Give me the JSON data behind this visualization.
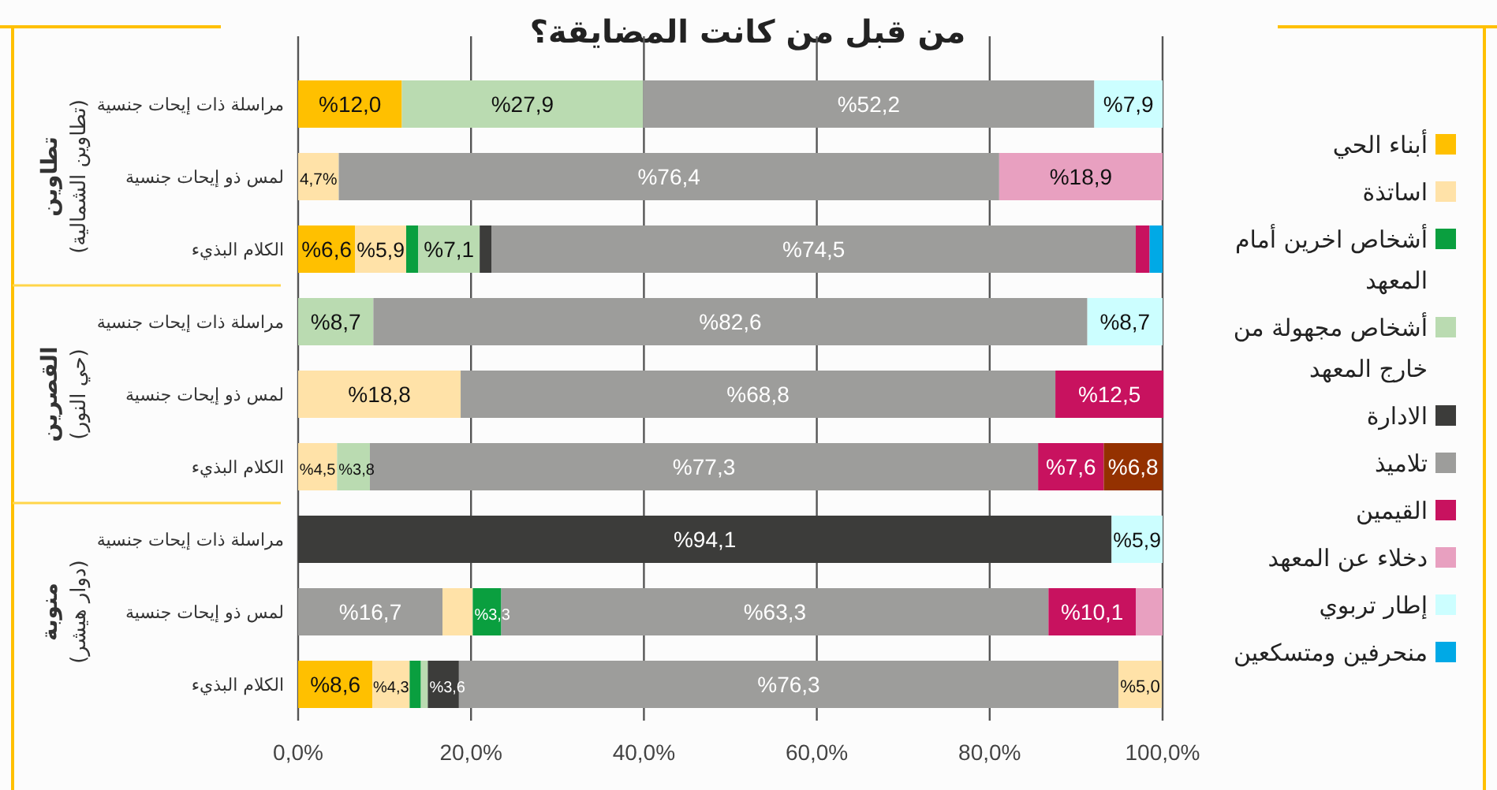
{
  "chart_data": {
    "type": "bar",
    "orientation": "horizontal",
    "stacked": true,
    "title": "من قبل من كانت المضايقة؟",
    "categories": [
      "مراسلة ذات إيحات جنسية",
      "لمس ذو إيحات جنسية",
      "الكلام البذيء",
      "مراسلة ذات إيحات جنسية",
      "لمس ذو إيحات جنسية",
      "الكلام البذيء",
      "مراسلة ذات إيحات جنسية",
      "لمس ذو إيحات جنسية",
      "الكلام البذيء"
    ],
    "annotations": [
      "تطاوين\n(تطاوين الشمالية)",
      "القصرين\n(حي النور)",
      "منوبة\n(دوار هيشر)"
    ],
    "xlim": [
      0,
      100
    ],
    "xticks": [
      {
        "value": 0,
        "label": "0,0%"
      },
      {
        "value": 20,
        "label": "20,0%"
      },
      {
        "value": 40,
        "label": "40,0%"
      },
      {
        "value": 60,
        "label": "60,0%"
      },
      {
        "value": 80,
        "label": "80,0%"
      },
      {
        "value": 100,
        "label": "100,0%"
      }
    ],
    "grid": "x",
    "legend": "right",
    "series": [
      {
        "color": "#9d9d9b",
        "values": [
          null,
          null,
          null,
          null,
          null,
          null,
          null,
          16.7,
          null
        ],
        "value_labels": [
          null,
          null,
          null,
          null,
          null,
          null,
          null,
          "%16,7",
          null
        ]
      },
      {
        "name": "أبناء الحي",
        "color": "#ffc000",
        "values": [
          12.0,
          null,
          6.6,
          null,
          null,
          null,
          null,
          null,
          8.6
        ],
        "value_labels": [
          "%12,0",
          null,
          "%6,6",
          null,
          null,
          null,
          null,
          null,
          "%8,6"
        ]
      },
      {
        "name": "اساتذة",
        "color": "#ffe2a8",
        "values": [
          null,
          4.7,
          5.9,
          null,
          18.8,
          4.5,
          null,
          3.5,
          4.3
        ],
        "value_labels": [
          null,
          "4,7%",
          "%5,9",
          null,
          "%18,8",
          "%4,5",
          null,
          null,
          "%4,3"
        ]
      },
      {
        "name": "أشخاص اخرين أمام المعهد",
        "color": "#0a9f3f",
        "values": [
          null,
          null,
          1.4,
          null,
          null,
          null,
          null,
          3.3,
          1.3
        ],
        "value_labels": [
          null,
          null,
          null,
          null,
          null,
          null,
          null,
          "%3,3",
          null
        ]
      },
      {
        "name": "أشخاص مجهولة من خارج المعهد",
        "color": "#badbb1",
        "values": [
          27.9,
          null,
          7.1,
          8.7,
          null,
          3.8,
          null,
          null,
          0.8
        ],
        "value_labels": [
          "%27,9",
          null,
          "%7,1",
          "%8,7",
          null,
          "%3,8",
          null,
          null,
          null
        ]
      },
      {
        "name": "الادارة",
        "color": "#3c3c3a",
        "values": [
          null,
          null,
          1.4,
          null,
          null,
          null,
          94.1,
          null,
          3.6
        ],
        "value_labels": [
          null,
          null,
          null,
          null,
          null,
          null,
          "%94,1",
          null,
          "%3,6"
        ]
      },
      {
        "name": "تلاميذ",
        "color": "#9d9d9b",
        "values": [
          52.2,
          76.4,
          74.5,
          82.6,
          68.8,
          77.3,
          null,
          63.3,
          76.3
        ],
        "value_labels": [
          "%52,2",
          "%76,4",
          "%74,5",
          "%82,6",
          "%68,8",
          "%77,3",
          null,
          "%63,3",
          "%76,3"
        ]
      },
      {
        "name": "القيمين",
        "color": "#c8125f",
        "values": [
          null,
          null,
          1.6,
          null,
          12.5,
          7.6,
          null,
          10.1,
          null
        ],
        "value_labels": [
          null,
          null,
          null,
          null,
          "%12,5",
          "%7,6",
          null,
          "%10,1",
          null
        ]
      },
      {
        "name": "دخلاء عن المعهد",
        "color": "#e8a0c0",
        "values": [
          null,
          18.9,
          null,
          null,
          null,
          null,
          null,
          3.1,
          null
        ],
        "value_labels": [
          null,
          "%18,9",
          null,
          null,
          null,
          null,
          null,
          null,
          null
        ]
      },
      {
        "name": "إطار تربوي",
        "color": "#ccfeff",
        "values": [
          7.9,
          null,
          null,
          8.7,
          null,
          null,
          5.9,
          null,
          null
        ],
        "value_labels": [
          "%7,9",
          null,
          null,
          "%8,7",
          null,
          null,
          "%5,9",
          null,
          null
        ]
      },
      {
        "name": "منحرفين ومتسكعين",
        "color": "#00a9e6",
        "values": [
          null,
          null,
          1.5,
          null,
          null,
          null,
          null,
          null,
          null
        ],
        "value_labels": [
          null,
          null,
          null,
          null,
          null,
          null,
          null,
          null,
          null
        ]
      },
      {
        "color": "#943100",
        "values": [
          null,
          null,
          null,
          null,
          null,
          6.8,
          null,
          null,
          null
        ],
        "value_labels": [
          null,
          null,
          null,
          null,
          null,
          "%6,8",
          null,
          null,
          null
        ]
      },
      {
        "color": "#ffe2a8",
        "values": [
          null,
          null,
          null,
          null,
          null,
          null,
          null,
          null,
          5.0
        ],
        "value_labels": [
          null,
          null,
          null,
          null,
          null,
          null,
          null,
          null,
          "%5,0"
        ]
      }
    ]
  }
}
